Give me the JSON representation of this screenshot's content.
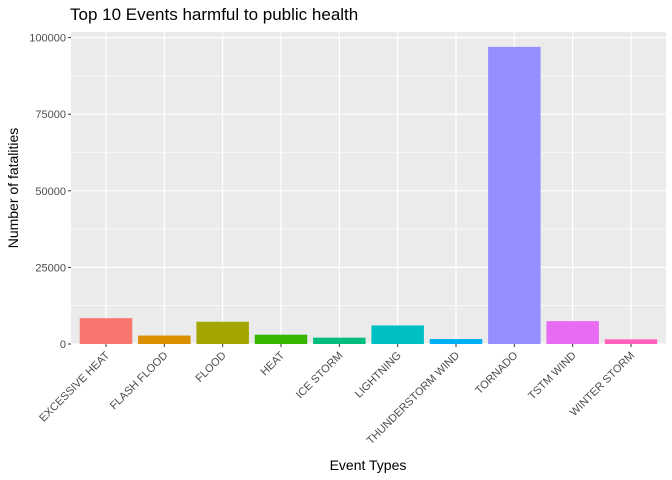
{
  "chart_data": {
    "type": "bar",
    "title": "Top 10 Events harmful to public health",
    "xlabel": "Event Types",
    "ylabel": "Number of fatalities",
    "categories": [
      "EXCESSIVE HEAT",
      "FLASH FLOOD",
      "FLOOD",
      "HEAT",
      "ICE STORM",
      "LIGHTNING",
      "THUNDERSTORM WIND",
      "TORNADO",
      "TSTM WIND",
      "WINTER STORM"
    ],
    "values": [
      8428,
      2755,
      7259,
      3037,
      2064,
      6046,
      1621,
      96979,
      7461,
      1527
    ],
    "colors": [
      "#F8766D",
      "#D89000",
      "#A3A500",
      "#39B600",
      "#00BF7D",
      "#00BFC4",
      "#00B0F6",
      "#9590FF",
      "#E76BF3",
      "#FF62BC"
    ],
    "ylim": [
      0,
      101828
    ],
    "yticks": [
      0,
      25000,
      50000,
      75000,
      100000
    ],
    "ytick_labels": [
      "0",
      "25000",
      "50000",
      "75000",
      "100000"
    ],
    "grid": true,
    "legend": "none",
    "panel_background": "#EBEBEB",
    "grid_color": "#FFFFFF"
  }
}
